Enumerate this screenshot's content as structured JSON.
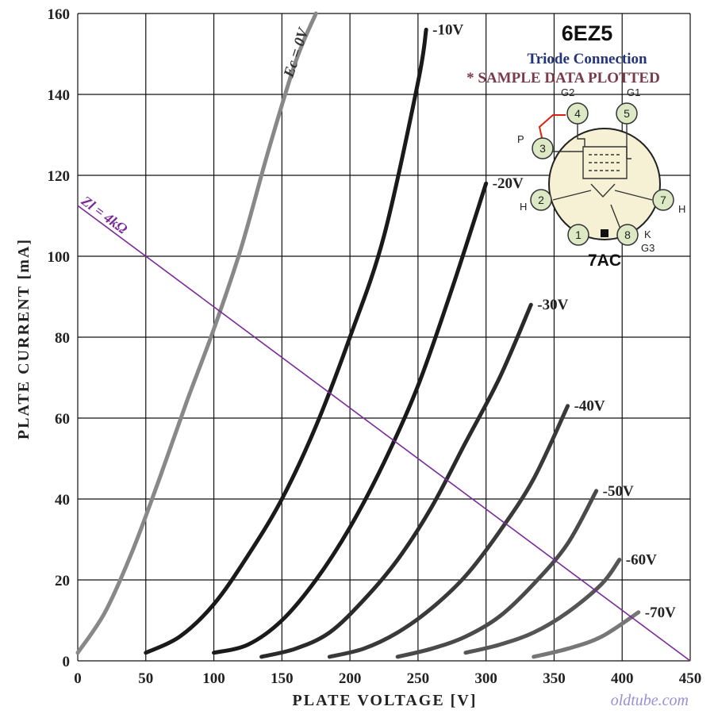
{
  "chart_data": {
    "type": "line",
    "title": "6EZ5",
    "subtitle": "Triode Connection",
    "note": "* SAMPLE DATA PLOTTED",
    "xlabel": "PLATE  VOLTAGE  [V]",
    "ylabel": "PLATE  CURRENT  [mA]",
    "xlim": [
      0,
      450
    ],
    "ylim": [
      0,
      160
    ],
    "xticks": [
      "0",
      "50",
      "100",
      "150",
      "200",
      "250",
      "300",
      "350",
      "400",
      "450"
    ],
    "yticks": [
      "0",
      "20",
      "40",
      "60",
      "80",
      "100",
      "120",
      "140",
      "160"
    ],
    "grid": true,
    "series": [
      {
        "name": "Ec = 0V",
        "color": "#888888",
        "x": [
          0,
          20,
          40,
          60,
          80,
          100,
          120,
          140,
          160,
          175
        ],
        "y": [
          2,
          12,
          27,
          45,
          64,
          82,
          102,
          126,
          148,
          160
        ]
      },
      {
        "name": "-10V",
        "color": "#1a1a1a",
        "x": [
          50,
          75,
          100,
          125,
          150,
          175,
          200,
          225,
          250,
          256
        ],
        "y": [
          2,
          6,
          14,
          26,
          40,
          58,
          80,
          105,
          143,
          156
        ]
      },
      {
        "name": "-20V",
        "color": "#1a1a1a",
        "x": [
          100,
          125,
          150,
          175,
          200,
          225,
          250,
          275,
          300
        ],
        "y": [
          2,
          4,
          10,
          20,
          33,
          49,
          68,
          92,
          118
        ]
      },
      {
        "name": "-30V",
        "color": "#2a2a2a",
        "x": [
          135,
          160,
          185,
          210,
          235,
          260,
          285,
          310,
          333
        ],
        "y": [
          1,
          3,
          7,
          15,
          25,
          38,
          54,
          70,
          88
        ]
      },
      {
        "name": "-40V",
        "color": "#3a3a3a",
        "x": [
          185,
          210,
          235,
          260,
          285,
          310,
          335,
          360
        ],
        "y": [
          1,
          3,
          7,
          13,
          21,
          32,
          45,
          63
        ]
      },
      {
        "name": "-50V",
        "color": "#4a4a4a",
        "x": [
          235,
          260,
          285,
          310,
          335,
          360,
          381
        ],
        "y": [
          1,
          3,
          6,
          11,
          19,
          29,
          42
        ]
      },
      {
        "name": "-60V",
        "color": "#555555",
        "x": [
          285,
          310,
          335,
          360,
          385,
          398
        ],
        "y": [
          2,
          4,
          7,
          12,
          19,
          25
        ]
      },
      {
        "name": "-70V",
        "color": "#777777",
        "x": [
          335,
          360,
          385,
          412
        ],
        "y": [
          1,
          3,
          6,
          12
        ]
      }
    ],
    "load_line": {
      "name": "Zl = 4kΩ",
      "color": "#7a2a9a",
      "x": [
        0,
        450
      ],
      "y": [
        112.5,
        0
      ]
    }
  },
  "pinout": {
    "base_code": "7AC",
    "pins": [
      {
        "num": "1",
        "label": ""
      },
      {
        "num": "2",
        "label": "H"
      },
      {
        "num": "3",
        "label": "P"
      },
      {
        "num": "4",
        "label": "G2"
      },
      {
        "num": "5",
        "label": "G1"
      },
      {
        "num": "7",
        "label": "H"
      },
      {
        "num": "8",
        "label": "K G3"
      }
    ],
    "strap_color": "#e02010"
  },
  "watermark": "oldtube.com"
}
